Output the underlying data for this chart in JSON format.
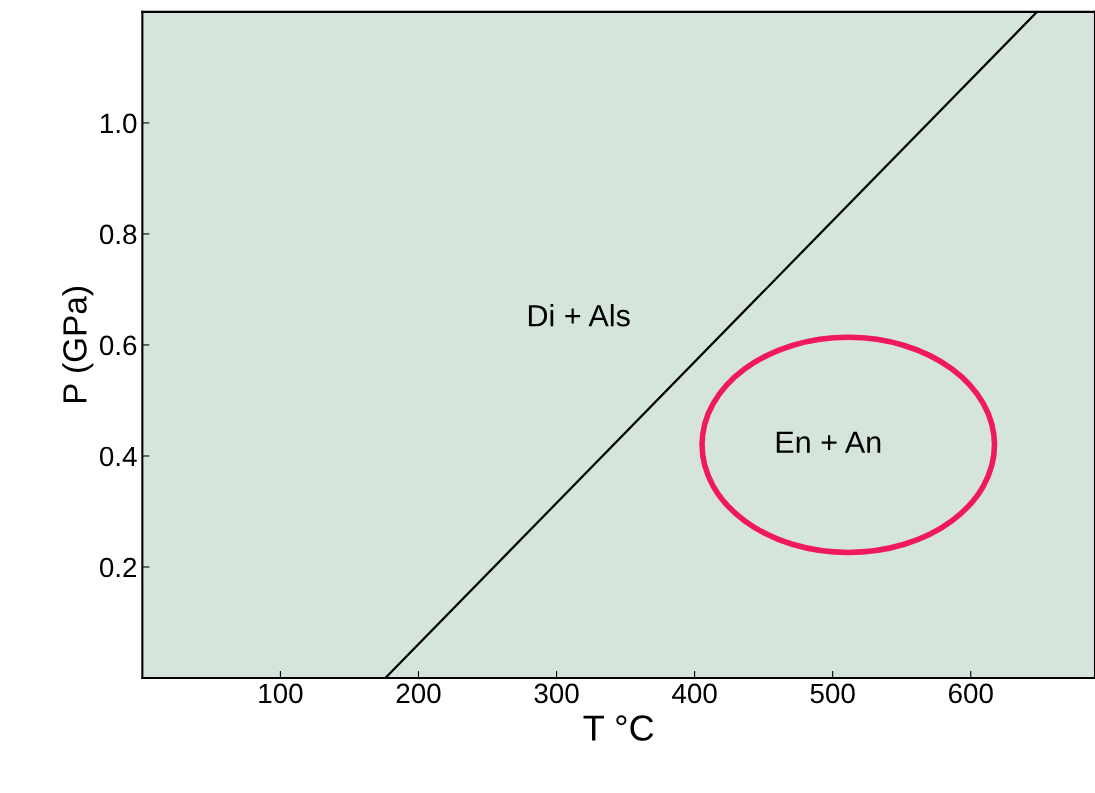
{
  "chart_data": {
    "type": "line",
    "xlabel": "T °C",
    "ylabel": "P (GPa)",
    "series": [
      {
        "color": "#000000",
        "x": [
          176,
          648
        ],
        "values": [
          0,
          1.2
        ]
      }
    ],
    "xlim": [
      0,
      690
    ],
    "ylim": [
      0,
      1.2
    ],
    "xticks": [
      100,
      200,
      300,
      400,
      500,
      600
    ],
    "yticks": [
      0.2,
      0.4,
      0.6,
      0.8,
      {
        "value": 1,
        "label": "1.0"
      }
    ],
    "annotations": [
      "Di + Als",
      "En + An"
    ],
    "grid": false,
    "legend": false,
    "marker": "none",
    "line_style": "solid"
  }
}
